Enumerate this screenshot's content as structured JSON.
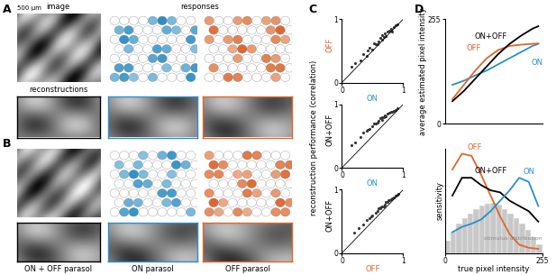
{
  "figure_panels": {
    "panel_labels": [
      "A",
      "B",
      "C",
      "D"
    ],
    "scale_bar": "500 µm",
    "image_title": "image",
    "responses_title": "responses",
    "reconstructions_title": "reconstructions",
    "cell_types": [
      {
        "name": "ON + OFF parasol",
        "color": "#000000"
      },
      {
        "name": "ON parasol",
        "color": "#2a8fc8"
      },
      {
        "name": "OFF parasol",
        "color": "#e0662a"
      }
    ],
    "shared_y_label": "reconstruction performance (correlation)"
  },
  "chart_data": [
    {
      "type": "scatter",
      "x_label": "ON",
      "y_label": "OFF",
      "xlim": [
        0,
        1
      ],
      "ylim": [
        0,
        1
      ],
      "xticks": [
        0,
        1
      ],
      "yticks": [
        0,
        1
      ],
      "x": [
        0.15,
        0.22,
        0.3,
        0.35,
        0.4,
        0.45,
        0.5,
        0.52,
        0.55,
        0.6,
        0.62,
        0.65,
        0.68,
        0.7,
        0.72,
        0.75,
        0.78,
        0.8,
        0.82,
        0.85,
        0.88,
        0.9,
        0.42,
        0.58,
        0.66
      ],
      "values": [
        0.25,
        0.3,
        0.35,
        0.45,
        0.42,
        0.55,
        0.52,
        0.62,
        0.6,
        0.65,
        0.7,
        0.68,
        0.72,
        0.78,
        0.74,
        0.8,
        0.82,
        0.85,
        0.8,
        0.88,
        0.9,
        0.92,
        0.5,
        0.6,
        0.75
      ]
    },
    {
      "type": "scatter",
      "x_label": "ON",
      "y_label": "ON+OFF",
      "xlim": [
        0,
        1
      ],
      "ylim": [
        0,
        1
      ],
      "xticks": [
        0,
        1
      ],
      "yticks": [
        0,
        1
      ],
      "x": [
        0.15,
        0.22,
        0.3,
        0.35,
        0.4,
        0.45,
        0.5,
        0.52,
        0.55,
        0.6,
        0.62,
        0.65,
        0.68,
        0.7,
        0.72,
        0.75,
        0.78,
        0.8,
        0.82,
        0.85,
        0.88,
        0.9,
        0.42,
        0.58,
        0.66
      ],
      "values": [
        0.35,
        0.4,
        0.48,
        0.55,
        0.58,
        0.62,
        0.66,
        0.7,
        0.7,
        0.74,
        0.78,
        0.76,
        0.8,
        0.83,
        0.82,
        0.85,
        0.87,
        0.88,
        0.88,
        0.9,
        0.92,
        0.94,
        0.6,
        0.72,
        0.8
      ]
    },
    {
      "type": "scatter",
      "x_label": "OFF",
      "y_label": "ON+OFF",
      "xlim": [
        0,
        1
      ],
      "ylim": [
        0,
        1
      ],
      "xticks": [
        0,
        1
      ],
      "yticks": [
        0,
        1
      ],
      "x": [
        0.2,
        0.28,
        0.35,
        0.4,
        0.45,
        0.5,
        0.55,
        0.58,
        0.6,
        0.63,
        0.66,
        0.7,
        0.72,
        0.75,
        0.78,
        0.8,
        0.82,
        0.85,
        0.88,
        0.9,
        0.92,
        0.48,
        0.62,
        0.68,
        0.76
      ],
      "values": [
        0.32,
        0.4,
        0.45,
        0.52,
        0.55,
        0.6,
        0.64,
        0.66,
        0.7,
        0.72,
        0.74,
        0.77,
        0.8,
        0.8,
        0.83,
        0.85,
        0.86,
        0.88,
        0.9,
        0.92,
        0.93,
        0.58,
        0.7,
        0.74,
        0.84
      ]
    },
    {
      "type": "line",
      "y_label": "average estimated pixel intensity",
      "xlim": [
        0,
        255
      ],
      "ylim": [
        0,
        255
      ],
      "yticks": [
        0,
        255
      ],
      "tick_labels": "y",
      "x": [
        20,
        50,
        80,
        110,
        140,
        170,
        200,
        230,
        245
      ],
      "series": [
        {
          "name": "ON",
          "color": "#2a8fc8",
          "values": [
            95,
            105,
            118,
            130,
            145,
            160,
            175,
            190,
            195
          ]
        },
        {
          "name": "OFF",
          "color": "#e0662a",
          "values": [
            60,
            95,
            130,
            160,
            180,
            190,
            193,
            195,
            196
          ]
        },
        {
          "name": "ON+OFF",
          "color": "#000000",
          "values": [
            55,
            80,
            110,
            140,
            170,
            195,
            215,
            232,
            238
          ]
        }
      ]
    },
    {
      "type": "line",
      "y_label": "sensitivity",
      "x_label": "true pixel intensity",
      "xlim": [
        0,
        255
      ],
      "ylim": [
        0,
        1
      ],
      "xticks": [
        0,
        255
      ],
      "tick_labels": "x",
      "x": [
        20,
        45,
        70,
        95,
        120,
        145,
        170,
        195,
        220,
        245
      ],
      "series": [
        {
          "name": "OFF",
          "color": "#e0662a",
          "values": [
            0.8,
            0.95,
            0.93,
            0.75,
            0.55,
            0.35,
            0.18,
            0.08,
            0.05,
            0.04
          ]
        },
        {
          "name": "ON+OFF",
          "color": "#000000",
          "values": [
            0.55,
            0.72,
            0.72,
            0.65,
            0.6,
            0.58,
            0.5,
            0.45,
            0.4,
            0.3
          ]
        },
        {
          "name": "ON",
          "color": "#2a8fc8",
          "values": [
            0.2,
            0.25,
            0.28,
            0.32,
            0.4,
            0.5,
            0.6,
            0.72,
            0.68,
            0.45
          ]
        }
      ],
      "annotation": "stimulus distribution",
      "bins": [
        0,
        15,
        30,
        45,
        60,
        75,
        90,
        105,
        120,
        135,
        150,
        165,
        180,
        195,
        210,
        225,
        240,
        255
      ],
      "counts": [
        0.12,
        0.2,
        0.28,
        0.33,
        0.38,
        0.42,
        0.45,
        0.47,
        0.48,
        0.46,
        0.42,
        0.38,
        0.33,
        0.28,
        0.22,
        0.15,
        0.08
      ]
    }
  ]
}
